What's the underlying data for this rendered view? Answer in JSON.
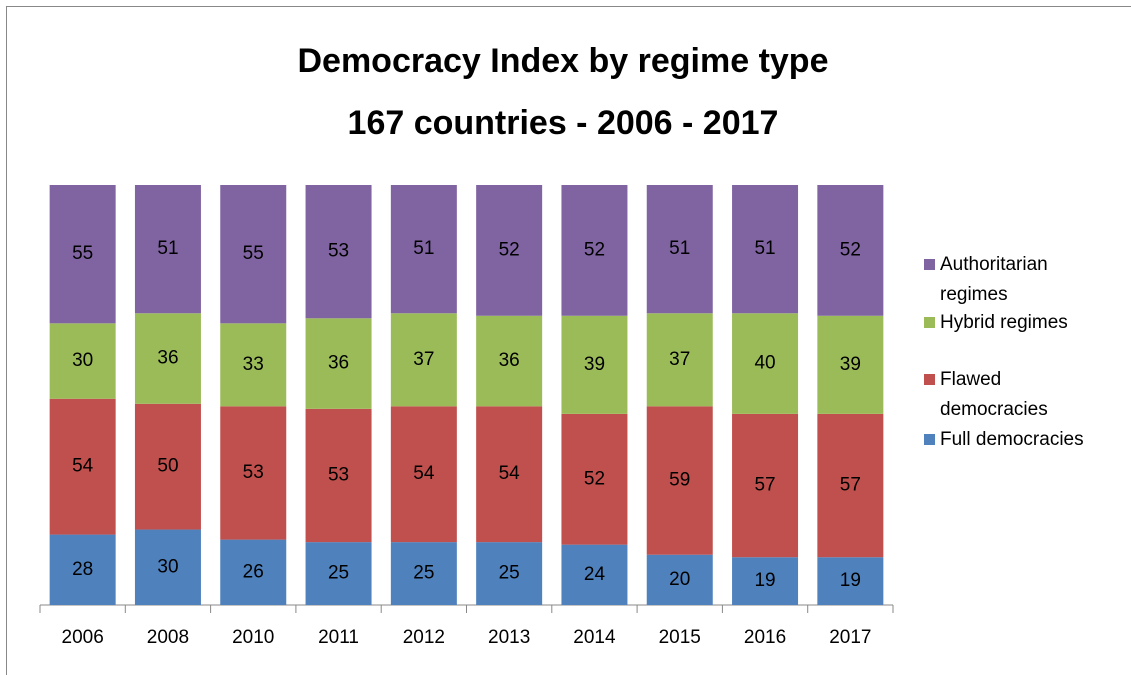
{
  "chart_data": {
    "type": "stacked_bar",
    "title": "Democracy Index by regime type",
    "subtitle": "167 countries - 2006 - 2017",
    "categories": [
      "2006",
      "2008",
      "2010",
      "2011",
      "2012",
      "2013",
      "2014",
      "2015",
      "2016",
      "2017"
    ],
    "series": [
      {
        "name": "Full democracies",
        "color": "#4f81bd",
        "values": [
          28,
          30,
          26,
          25,
          25,
          25,
          24,
          20,
          19,
          19
        ]
      },
      {
        "name": "Flawed democracies",
        "color": "#c0504d",
        "values": [
          54,
          50,
          53,
          53,
          54,
          54,
          52,
          59,
          57,
          57
        ]
      },
      {
        "name": "Hybrid regimes",
        "color": "#9bbb59",
        "values": [
          30,
          36,
          33,
          36,
          37,
          36,
          39,
          37,
          40,
          39
        ]
      },
      {
        "name": "Authoritarian regimes",
        "color": "#8064a2",
        "values": [
          55,
          51,
          55,
          53,
          51,
          52,
          52,
          51,
          51,
          52
        ]
      }
    ],
    "legend": "right"
  }
}
